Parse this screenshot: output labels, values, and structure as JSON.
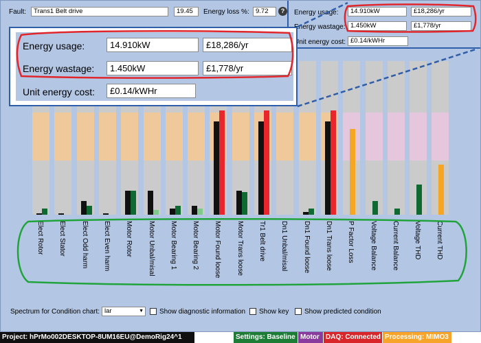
{
  "top": {
    "fault_label": "Fault:",
    "fault_value": "Trans1 Belt drive",
    "fault_num": "19.45",
    "energy_loss_label": "Energy loss %:",
    "energy_loss_value": "9.72"
  },
  "right_panel": {
    "usage_label": "Energy usage:",
    "usage_kw": "14.910kW",
    "usage_cost": "£18,286/yr",
    "wastage_label": "Energy wastage:",
    "wastage_kw": "1.450kW",
    "wastage_cost": "£1,778/yr",
    "unit_label": "Unit energy cost:",
    "unit_cost": "£0.14/kWHr"
  },
  "zoom_panel": {
    "usage_label": "Energy usage:",
    "usage_kw": "14.910kW",
    "usage_cost": "£18,286/yr",
    "wastage_label": "Energy wastage:",
    "wastage_kw": "1.450kW",
    "wastage_cost": "£1,778/yr",
    "unit_label": "Unit energy cost:",
    "unit_cost": "£0.14/kWHr"
  },
  "colors": {
    "band_orange": "#f0c99a",
    "band_pink": "#e4c7dd",
    "band_gray": "#cbcbcb",
    "black": "#111111",
    "green": "#0e6a31",
    "light_green": "#7fc98b",
    "red": "#e8262b",
    "orange": "#f5a623",
    "annotation_red": "#e0262b",
    "annotation_green": "#1fa33a",
    "annotation_blue": "#2f5da8"
  },
  "chart_data": {
    "type": "bar",
    "categories": [
      "Elect Rotor",
      "Elect Stator",
      "Elect Odd harm",
      "Elect Even harm",
      "Motor Rotor",
      "Motor Unbal/misal",
      "Motor Bearing 1",
      "Motor Bearing 2",
      "Motor Found loose",
      "Motor Trans loose",
      "Tr1 Belt drive",
      "Dn1 Unbal/misal",
      "Dn1 Found loose",
      "Dn1 Trans loose",
      "P Factor Loss",
      "Voltage Balance",
      "Current Balance",
      "Voltage THD",
      "Current THD"
    ],
    "bars": [
      {
        "marks": [
          {
            "color": "black",
            "value": 1
          },
          {
            "color": "green",
            "value": 4
          }
        ]
      },
      {
        "marks": [
          {
            "color": "black",
            "value": 1
          },
          {
            "color": "green",
            "value": 0
          }
        ]
      },
      {
        "marks": [
          {
            "color": "black",
            "value": 9
          },
          {
            "color": "green",
            "value": 6
          }
        ]
      },
      {
        "marks": [
          {
            "color": "black",
            "value": 1
          },
          {
            "color": "green",
            "value": 0
          }
        ]
      },
      {
        "marks": [
          {
            "color": "black",
            "value": 16
          },
          {
            "color": "green",
            "value": 16
          }
        ]
      },
      {
        "marks": [
          {
            "color": "black",
            "value": 16
          },
          {
            "color": "light_green",
            "value": 3
          }
        ]
      },
      {
        "marks": [
          {
            "color": "black",
            "value": 4
          },
          {
            "color": "green",
            "value": 6
          }
        ]
      },
      {
        "marks": [
          {
            "color": "black",
            "value": 6
          },
          {
            "color": "light_green",
            "value": 4
          }
        ]
      },
      {
        "marks": [
          {
            "color": "black",
            "value": 62
          },
          {
            "color": "red",
            "value": 69
          }
        ]
      },
      {
        "marks": [
          {
            "color": "black",
            "value": 16
          },
          {
            "color": "green",
            "value": 15
          }
        ]
      },
      {
        "marks": [
          {
            "color": "black",
            "value": 62
          },
          {
            "color": "red",
            "value": 69
          }
        ]
      },
      {
        "marks": [
          {
            "color": "black",
            "value": 0
          },
          {
            "color": "green",
            "value": 0
          }
        ]
      },
      {
        "marks": [
          {
            "color": "black",
            "value": 2
          },
          {
            "color": "green",
            "value": 4
          }
        ]
      },
      {
        "marks": [
          {
            "color": "black",
            "value": 62
          },
          {
            "color": "red",
            "value": 69
          }
        ]
      },
      {
        "marks": [
          {
            "color": "orange",
            "value": 57
          }
        ]
      },
      {
        "marks": [
          {
            "color": "green",
            "value": 9
          }
        ]
      },
      {
        "marks": [
          {
            "color": "green",
            "value": 4
          }
        ]
      },
      {
        "marks": [
          {
            "color": "green",
            "value": 20
          }
        ]
      },
      {
        "marks": [
          {
            "color": "orange",
            "value": 33
          }
        ]
      }
    ]
  },
  "bottom": {
    "spectrum_label": "Spectrum for Condition chart:",
    "spectrum_value": "lar",
    "opt_diag": "Show diagnostic information",
    "opt_key": "Show key",
    "opt_pred": "Show predicted condition"
  },
  "status": {
    "project": "Project: hPrMo002DESKTOP-8UM16EU@DemoRig24^1",
    "settings": "Settings: Baseline",
    "motor": "Motor",
    "daq": "DAQ: Connected",
    "processing": "Processing: MIMO3"
  }
}
